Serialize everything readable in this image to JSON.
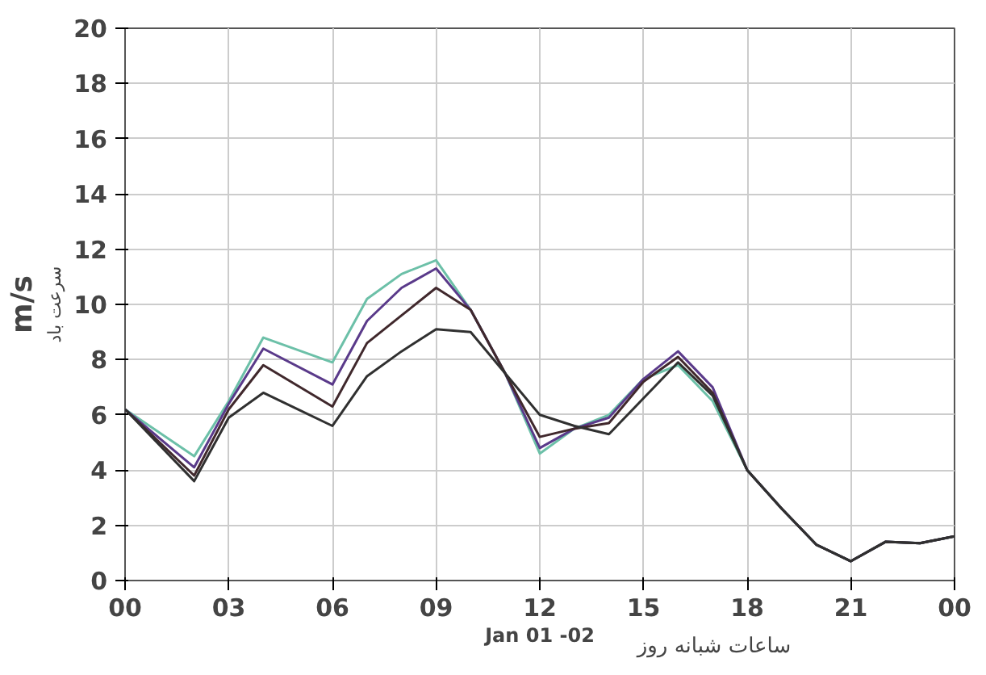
{
  "chart_data": {
    "type": "line",
    "xlabel": "Jan 01 -02",
    "ylabel": "m/s",
    "annotations": [
      "ساعات شبانه روز",
      "سرعت باد"
    ],
    "x": [
      0,
      2,
      3,
      4,
      6,
      7,
      8,
      9,
      10,
      11,
      12,
      13,
      14,
      15,
      16,
      17,
      18,
      19,
      20,
      21,
      22,
      23,
      24
    ],
    "series": [
      {
        "color": "#6cc0a8",
        "values": [
          6.2,
          4.5,
          6.5,
          8.8,
          7.9,
          10.2,
          11.1,
          11.6,
          9.8,
          7.5,
          4.6,
          5.5,
          6.0,
          7.3,
          7.8,
          6.5,
          4.0,
          2.6,
          1.3,
          0.7,
          1.4,
          1.35,
          1.6
        ]
      },
      {
        "color": "#5a3a8a",
        "values": [
          6.2,
          4.1,
          6.4,
          8.4,
          7.1,
          9.4,
          10.6,
          11.3,
          9.8,
          7.5,
          4.8,
          5.5,
          5.9,
          7.3,
          8.3,
          7.0,
          4.0,
          2.6,
          1.3,
          0.7,
          1.4,
          1.35,
          1.6
        ]
      },
      {
        "color": "#40282c",
        "values": [
          6.2,
          3.8,
          6.2,
          7.8,
          6.3,
          8.6,
          9.6,
          10.6,
          9.8,
          7.5,
          5.2,
          5.5,
          5.7,
          7.2,
          8.1,
          6.8,
          4.0,
          2.6,
          1.3,
          0.7,
          1.4,
          1.35,
          1.6
        ]
      },
      {
        "color": "#303030",
        "values": [
          6.2,
          3.6,
          5.9,
          6.8,
          5.6,
          7.4,
          8.3,
          9.1,
          9.0,
          7.5,
          6.0,
          5.6,
          5.3,
          6.6,
          7.9,
          6.7,
          4.0,
          2.6,
          1.3,
          0.7,
          1.4,
          1.35,
          1.6
        ]
      }
    ],
    "xlim": [
      0,
      24
    ],
    "ylim": [
      0,
      20
    ],
    "xticks": [
      {
        "value": 0,
        "label": "00"
      },
      {
        "value": 3,
        "label": "03"
      },
      {
        "value": 6,
        "label": "06"
      },
      {
        "value": 9,
        "label": "09"
      },
      12,
      15,
      18,
      21,
      {
        "value": 24,
        "label": "00"
      }
    ],
    "yticks": [
      0,
      2,
      4,
      6,
      8,
      10,
      12,
      14,
      16,
      18,
      20
    ],
    "grid": true
  }
}
